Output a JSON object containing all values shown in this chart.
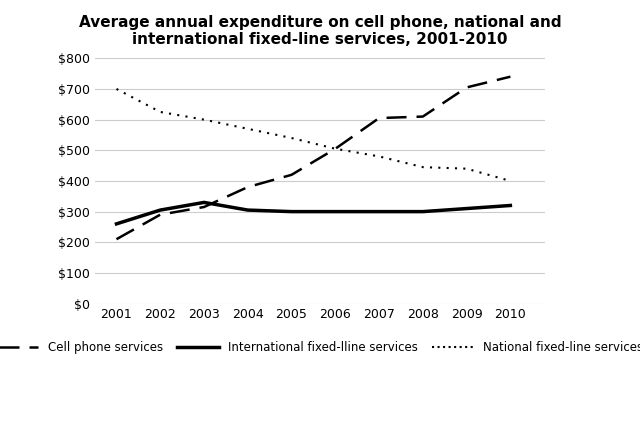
{
  "title": "Average annual expenditure on cell phone, national and\ninternational fixed-line services, 2001-2010",
  "years": [
    2001,
    2002,
    2003,
    2004,
    2005,
    2006,
    2007,
    2008,
    2009,
    2010
  ],
  "cell_phone": [
    210,
    290,
    315,
    380,
    420,
    505,
    605,
    610,
    705,
    740
  ],
  "intl_fixed": [
    260,
    305,
    330,
    305,
    300,
    300,
    300,
    300,
    310,
    320
  ],
  "natl_fixed": [
    700,
    625,
    600,
    570,
    540,
    505,
    480,
    445,
    440,
    400
  ],
  "ylim": [
    0,
    800
  ],
  "yticks": [
    0,
    100,
    200,
    300,
    400,
    500,
    600,
    700,
    800
  ],
  "background_color": "#ffffff",
  "legend_labels": [
    "Cell phone services",
    "International fixed-lline services",
    "National fixed-line services"
  ]
}
